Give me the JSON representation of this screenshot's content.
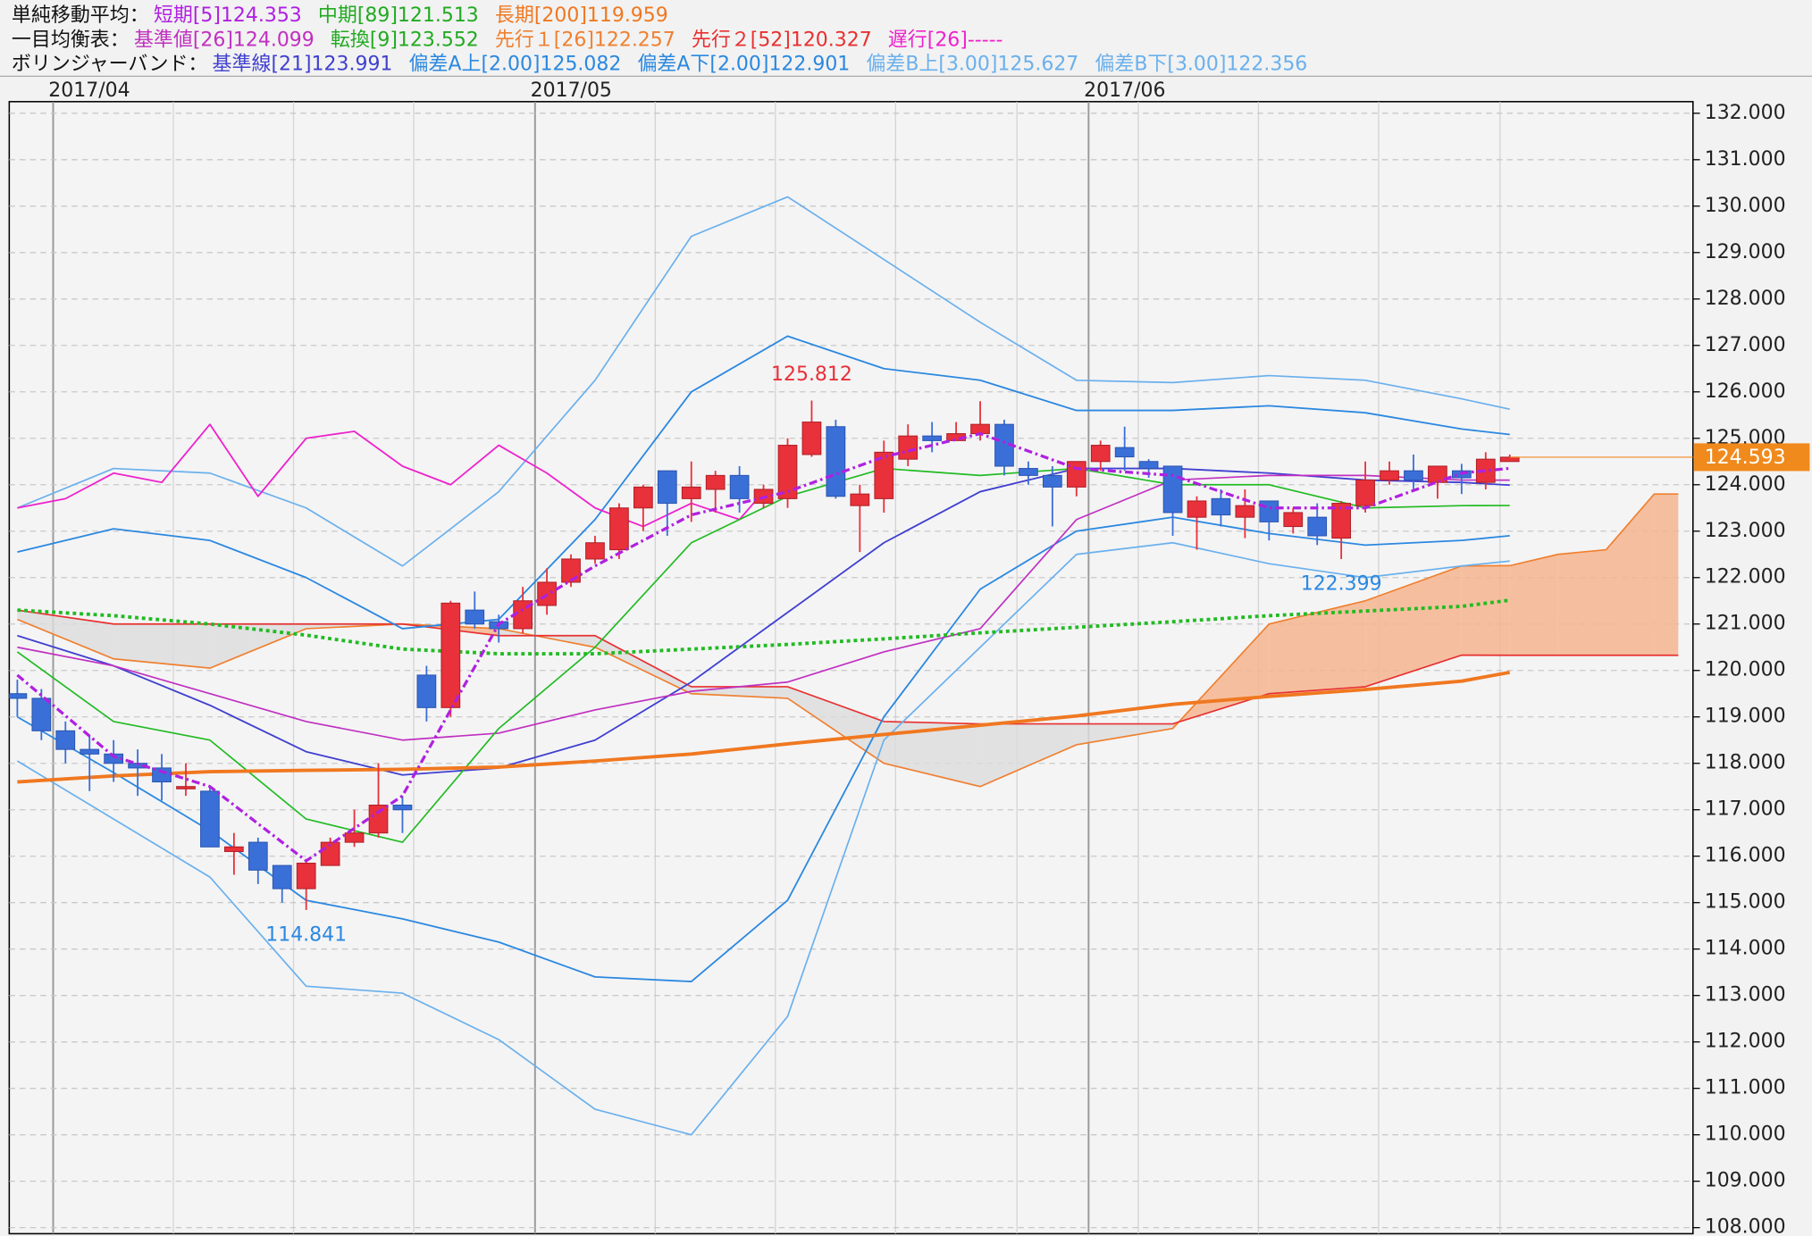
{
  "chart_data": {
    "type": "candlestick",
    "header_rows": [
      {
        "label": "単純移動平均：",
        "items": [
          {
            "text": "短期[5]124.353",
            "color": "#b020e0"
          },
          {
            "text": "中期[89]121.513",
            "color": "#22aa22"
          },
          {
            "text": "長期[200]119.959",
            "color": "#f07820"
          }
        ]
      },
      {
        "label": "一目均衡表：",
        "items": [
          {
            "text": "基準値[26]124.099",
            "color": "#c030c0"
          },
          {
            "text": "転換[9]123.552",
            "color": "#22aa22"
          },
          {
            "text": "先行１[26]122.257",
            "color": "#f08030"
          },
          {
            "text": "先行２[52]120.327",
            "color": "#e83030"
          },
          {
            "text": "遅行[26]-----",
            "color": "#ee22cc"
          }
        ]
      },
      {
        "label": "ボリンジャーバンド：",
        "items": [
          {
            "text": "基準線[21]123.991",
            "color": "#4040d0"
          },
          {
            "text": "偏差A上[2.00]125.082",
            "color": "#2b88e0"
          },
          {
            "text": "偏差A下[2.00]122.901",
            "color": "#2b88e0"
          },
          {
            "text": "偏差B上[3.00]125.627",
            "color": "#6ab0ec"
          },
          {
            "text": "偏差B下[3.00]122.356",
            "color": "#6ab0ec"
          }
        ]
      }
    ],
    "x_labels": [
      "2017/04",
      "2017/05",
      "2017/06"
    ],
    "ylim": [
      107.87,
      132.25
    ],
    "yticks": [
      {
        "value": 132,
        "label": "132.000"
      },
      {
        "value": 131,
        "label": "131.000"
      },
      {
        "value": 130,
        "label": "130.000"
      },
      {
        "value": 129,
        "label": "129.000"
      },
      {
        "value": 128,
        "label": "128.000"
      },
      {
        "value": 127,
        "label": "127.000"
      },
      {
        "value": 126,
        "label": "126.000"
      },
      {
        "value": 125,
        "label": "125.000"
      },
      {
        "value": 124,
        "label": "124.000"
      },
      {
        "value": 123,
        "label": "123.000"
      },
      {
        "value": 122,
        "label": "122.000"
      },
      {
        "value": 121,
        "label": "121.000"
      },
      {
        "value": 120,
        "label": "120.000"
      },
      {
        "value": 119,
        "label": "119.000"
      },
      {
        "value": 118,
        "label": "118.000"
      },
      {
        "value": 117,
        "label": "117.000"
      },
      {
        "value": 116,
        "label": "116.000"
      },
      {
        "value": 115,
        "label": "115.000"
      },
      {
        "value": 114,
        "label": "114.000"
      },
      {
        "value": 113,
        "label": "113.000"
      },
      {
        "value": 112,
        "label": "112.000"
      },
      {
        "value": 111,
        "label": "111.000"
      },
      {
        "value": 110,
        "label": "110.000"
      },
      {
        "value": 109,
        "label": "109.000"
      },
      {
        "value": 108,
        "label": "108.000"
      }
    ],
    "grid": true,
    "up_color": "#e8313a",
    "down_color": "#3b6fd8",
    "open": [
      119.5,
      119.4,
      118.7,
      118.3,
      118.2,
      118.0,
      117.9,
      117.5,
      117.4,
      116.1,
      116.3,
      115.8,
      115.3,
      115.8,
      116.3,
      116.5,
      117.1,
      119.9,
      119.2,
      121.3,
      121.05,
      120.9,
      121.4,
      121.9,
      122.4,
      122.6,
      123.5,
      124.3,
      123.7,
      123.9,
      124.2,
      123.6,
      123.7,
      124.65,
      125.25,
      123.55,
      123.7,
      124.55,
      125.05,
      124.95,
      125.1,
      125.3,
      124.35,
      124.2,
      123.95,
      124.5,
      124.8,
      124.5,
      124.4,
      123.3,
      123.7,
      123.3,
      123.65,
      123.1,
      123.3,
      122.85,
      123.55,
      124.1,
      124.3,
      124.05,
      124.3,
      124.05,
      124.5
    ],
    "high": [
      119.8,
      119.6,
      118.9,
      118.6,
      118.5,
      118.3,
      118.2,
      118.0,
      117.5,
      116.5,
      116.4,
      115.8,
      115.9,
      116.4,
      117.0,
      118.0,
      117.3,
      120.1,
      121.5,
      121.7,
      121.2,
      121.8,
      122.2,
      122.5,
      122.9,
      123.6,
      124.0,
      124.3,
      124.5,
      124.3,
      124.4,
      124.0,
      125.0,
      125.812,
      125.4,
      124.0,
      124.95,
      125.3,
      125.35,
      125.35,
      125.8,
      125.4,
      124.5,
      124.4,
      124.5,
      124.95,
      125.25,
      124.55,
      124.4,
      123.75,
      123.9,
      123.9,
      123.65,
      123.5,
      123.6,
      123.65,
      124.5,
      124.5,
      124.65,
      124.4,
      124.45,
      124.7,
      124.65
    ],
    "low": [
      119.0,
      118.5,
      118.0,
      117.4,
      117.6,
      117.3,
      117.2,
      117.3,
      116.2,
      115.6,
      115.4,
      115.0,
      114.841,
      115.8,
      116.2,
      116.4,
      116.5,
      118.9,
      119.0,
      120.9,
      120.6,
      120.8,
      121.2,
      121.8,
      122.3,
      122.4,
      123.0,
      122.9,
      123.2,
      123.4,
      123.4,
      123.5,
      123.5,
      124.6,
      123.7,
      122.55,
      123.4,
      124.4,
      124.7,
      124.95,
      124.95,
      124.2,
      124.0,
      123.1,
      123.75,
      124.3,
      124.3,
      124.15,
      122.9,
      122.6,
      123.1,
      122.85,
      122.8,
      122.95,
      122.7,
      122.399,
      123.4,
      124.0,
      123.9,
      123.7,
      123.8,
      123.9,
      124.5
    ],
    "close": [
      119.4,
      118.7,
      118.3,
      118.2,
      118.0,
      117.9,
      117.6,
      117.5,
      116.2,
      116.2,
      115.7,
      115.3,
      115.85,
      116.3,
      116.5,
      117.1,
      117.0,
      119.2,
      121.45,
      121.0,
      120.9,
      121.5,
      121.9,
      122.4,
      122.75,
      123.5,
      123.95,
      123.6,
      123.95,
      124.2,
      123.7,
      123.9,
      124.85,
      125.35,
      123.75,
      123.8,
      124.7,
      125.05,
      124.95,
      125.1,
      125.3,
      124.4,
      124.2,
      123.95,
      124.5,
      124.85,
      124.6,
      124.35,
      123.4,
      123.65,
      123.35,
      123.55,
      123.2,
      123.4,
      122.9,
      123.6,
      124.1,
      124.3,
      124.1,
      124.4,
      124.15,
      124.55,
      124.593
    ],
    "last_price": {
      "value": 124.593,
      "label": "124.593",
      "color": "#f08a1c"
    },
    "annotations": [
      {
        "label": "125.812",
        "value": 125.812,
        "candle": 33,
        "color": "#e8313a"
      },
      {
        "label": "114.841",
        "value": 114.841,
        "candle": 12,
        "color": "#2b88e0"
      },
      {
        "label": "122.399",
        "value": 122.399,
        "candle": 55,
        "color": "#2b88e0"
      }
    ],
    "cloud": {
      "x": [
        0,
        4,
        8,
        12,
        16,
        20,
        24,
        28,
        32,
        36,
        40,
        44,
        48,
        52,
        56,
        60,
        62,
        64,
        66,
        68,
        69
      ],
      "a": {
        "color": "#f08030",
        "values": [
          121.1,
          120.25,
          120.05,
          120.9,
          121.0,
          120.9,
          120.5,
          119.5,
          119.4,
          118.0,
          117.5,
          118.4,
          118.75,
          121.0,
          121.5,
          122.25,
          122.257,
          122.5,
          122.6,
          123.8,
          123.8
        ]
      },
      "b": {
        "color": "#e83030",
        "values": [
          121.3,
          121.0,
          121.0,
          121.0,
          121.0,
          120.75,
          120.75,
          119.65,
          119.65,
          118.9,
          118.85,
          118.85,
          118.85,
          119.5,
          119.65,
          120.33,
          120.327,
          120.327,
          120.327,
          120.327,
          120.327
        ]
      },
      "fill_up": "#f4b58f",
      "fill_down": "#dcdcdc"
    },
    "lines": [
      {
        "color": "#6ab0ec",
        "width": 1.3,
        "x": [
          0,
          4,
          8,
          12,
          16,
          20,
          24,
          28,
          32,
          36,
          40,
          44,
          48,
          52,
          56,
          60,
          62
        ],
        "values": [
          123.5,
          124.35,
          124.25,
          123.5,
          122.25,
          123.85,
          126.25,
          129.35,
          130.2,
          128.85,
          127.5,
          126.25,
          126.2,
          126.35,
          126.25,
          125.85,
          125.627
        ]
      },
      {
        "color": "#6ab0ec",
        "width": 1.3,
        "x": [
          0,
          4,
          8,
          12,
          16,
          20,
          24,
          28,
          32,
          36,
          40,
          44,
          48,
          52,
          56,
          60,
          62
        ],
        "values": [
          118.05,
          116.8,
          115.55,
          113.2,
          113.05,
          112.05,
          110.55,
          110.0,
          112.55,
          118.5,
          120.5,
          122.5,
          122.75,
          122.3,
          122.0,
          122.25,
          122.356
        ]
      },
      {
        "color": "#2b88e0",
        "width": 1.4,
        "x": [
          0,
          4,
          8,
          12,
          16,
          20,
          24,
          28,
          32,
          36,
          40,
          44,
          48,
          52,
          56,
          60,
          62
        ],
        "values": [
          122.55,
          123.05,
          122.8,
          122.0,
          120.9,
          121.1,
          123.25,
          126.0,
          127.2,
          126.5,
          126.25,
          125.6,
          125.6,
          125.7,
          125.55,
          125.2,
          125.082
        ]
      },
      {
        "color": "#2b88e0",
        "width": 1.4,
        "x": [
          0,
          4,
          8,
          12,
          16,
          20,
          24,
          28,
          32,
          36,
          40,
          44,
          48,
          52,
          56,
          60,
          62
        ],
        "values": [
          119.0,
          117.8,
          116.55,
          115.05,
          114.65,
          114.15,
          113.4,
          113.3,
          115.05,
          119.0,
          121.75,
          123.0,
          123.3,
          122.95,
          122.7,
          122.8,
          122.901
        ]
      },
      {
        "color": "#4040d0",
        "width": 1.4,
        "x": [
          0,
          4,
          8,
          12,
          16,
          20,
          24,
          28,
          32,
          36,
          40,
          44,
          48,
          52,
          56,
          60,
          62
        ],
        "values": [
          120.75,
          120.1,
          119.25,
          118.25,
          117.75,
          117.9,
          118.5,
          119.75,
          121.25,
          122.75,
          123.85,
          124.35,
          124.35,
          124.25,
          124.1,
          124.05,
          123.991
        ]
      },
      {
        "color": "#ee22cc",
        "width": 1.4,
        "x": [
          0,
          2,
          4,
          6,
          8,
          10,
          12,
          14,
          16,
          18,
          20,
          22,
          24,
          26,
          28,
          30,
          31
        ],
        "values": [
          123.5,
          123.7,
          124.25,
          124.05,
          125.3,
          123.75,
          125.0,
          125.15,
          124.4,
          124.0,
          124.85,
          124.25,
          123.5,
          123.1,
          123.6,
          123.25,
          123.85
        ]
      },
      {
        "color": "#c030c0",
        "width": 1.3,
        "x": [
          0,
          4,
          8,
          12,
          16,
          20,
          24,
          28,
          32,
          36,
          40,
          44,
          48,
          52,
          56,
          60,
          62
        ],
        "values": [
          120.5,
          120.1,
          119.5,
          118.9,
          118.5,
          118.65,
          119.15,
          119.55,
          119.75,
          120.4,
          120.9,
          123.25,
          124.1,
          124.2,
          124.2,
          124.1,
          124.099
        ]
      },
      {
        "color": "#22bb22",
        "width": 1.3,
        "x": [
          0,
          4,
          8,
          12,
          16,
          20,
          24,
          28,
          32,
          36,
          40,
          44,
          48,
          52,
          56,
          60,
          62
        ],
        "values": [
          120.4,
          118.9,
          118.5,
          116.8,
          116.3,
          118.75,
          120.5,
          122.75,
          123.75,
          124.35,
          124.2,
          124.35,
          124.0,
          124.0,
          123.5,
          123.55,
          123.552
        ]
      },
      {
        "color": "#f07820",
        "width": 3,
        "x": [
          0,
          4,
          8,
          12,
          16,
          20,
          24,
          28,
          32,
          36,
          40,
          44,
          48,
          52,
          56,
          60,
          62
        ],
        "values": [
          117.6,
          117.73,
          117.82,
          117.85,
          117.87,
          117.92,
          118.05,
          118.2,
          118.42,
          118.62,
          118.82,
          119.02,
          119.27,
          119.44,
          119.59,
          119.77,
          119.959
        ]
      },
      {
        "color": "#22bb22",
        "width": 3,
        "dash": "3 3",
        "x": [
          0,
          4,
          8,
          12,
          16,
          20,
          24,
          28,
          32,
          36,
          40,
          44,
          48,
          52,
          56,
          60,
          62
        ],
        "values": [
          121.3,
          121.18,
          121.0,
          120.76,
          120.46,
          120.36,
          120.36,
          120.46,
          120.56,
          120.68,
          120.81,
          120.93,
          121.05,
          121.18,
          121.28,
          121.38,
          121.513
        ]
      },
      {
        "color": "#b020e0",
        "width": 2.5,
        "dash": "7 3 2 3",
        "x": [
          0,
          4,
          8,
          12,
          16,
          20,
          24,
          28,
          32,
          36,
          40,
          44,
          48,
          52,
          56,
          60,
          62
        ],
        "values": [
          119.9,
          118.15,
          117.5,
          115.9,
          117.3,
          121.0,
          122.25,
          123.35,
          123.85,
          124.6,
          125.1,
          124.35,
          124.2,
          123.5,
          123.5,
          124.25,
          124.353
        ]
      }
    ]
  }
}
